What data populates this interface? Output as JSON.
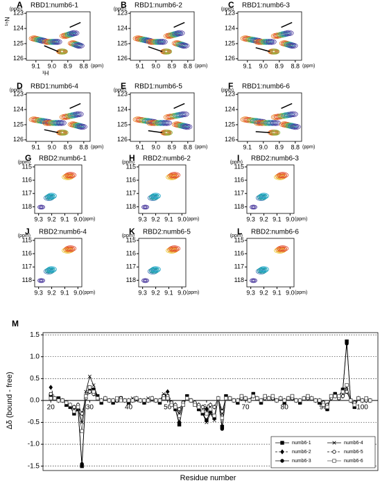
{
  "spectra": [
    {
      "x_label": "¹H",
      "y_label": "¹⁵N",
      "unit": "(ppm)",
      "xlim": [
        9.16,
        8.76
      ],
      "ylim": [
        122.9,
        126.1
      ],
      "xticks": [
        9.1,
        {
          "value": 9,
          "label": "9.0"
        },
        8.9,
        8.8
      ],
      "yticks": [
        123,
        124,
        125,
        126
      ],
      "panels": [
        {
          "letter": "A",
          "title": "RBD1:numb6-1"
        },
        {
          "letter": "B",
          "title": "RBD1:numb6-2"
        },
        {
          "letter": "C",
          "title": "RBD1:numb6-3"
        },
        {
          "letter": "D",
          "title": "RBD1:numb6-4"
        },
        {
          "letter": "E",
          "title": "RBD1:numb6-5"
        },
        {
          "letter": "F",
          "title": "RBD1:numb6-6"
        }
      ]
    },
    {
      "unit": "(ppm)",
      "xlim": [
        9.33,
        8.97
      ],
      "ylim": [
        114.85,
        118.5
      ],
      "xticks": [
        9.3,
        9.2,
        9.1,
        {
          "value": 9,
          "label": "9.0"
        }
      ],
      "yticks": [
        115,
        116,
        117,
        118
      ],
      "panels": [
        {
          "letter": "G",
          "title": "RBD2:numb6-1"
        },
        {
          "letter": "H",
          "title": "RBD2:numb6-2"
        },
        {
          "letter": "I",
          "title": "RBD2:numb6-3"
        },
        {
          "letter": "J",
          "title": "RBD2:numb6-4"
        },
        {
          "letter": "K",
          "title": "RBD2:numb6-5"
        },
        {
          "letter": "L",
          "title": "RBD2:numb6-6"
        }
      ]
    }
  ],
  "chart_data": {
    "type": "line",
    "panel_label": "M",
    "x_label": "Residue number",
    "y_label": "Δδ (bound - free)",
    "xlim": [
      18,
      104
    ],
    "ylim": [
      -1.6,
      1.55
    ],
    "xticks": [
      20,
      30,
      40,
      50,
      60,
      70,
      80,
      90,
      100
    ],
    "yticks": [
      -1.5,
      {
        "value": -1,
        "label": "-1.0"
      },
      -0.5,
      {
        "value": 0,
        "label": "0.0"
      },
      0.5,
      {
        "value": 1,
        "label": "1.0"
      },
      1.5
    ],
    "grid": true,
    "legend": "lower right",
    "x": [
      20,
      21,
      22,
      23,
      24,
      25,
      26,
      27,
      28,
      29,
      30,
      31,
      32,
      33,
      34,
      35,
      36,
      37,
      38,
      39,
      40,
      41,
      42,
      43,
      44,
      45,
      46,
      47,
      48,
      49,
      50,
      51,
      52,
      53,
      54,
      55,
      56,
      57,
      58,
      59,
      60,
      61,
      62,
      63,
      64,
      65,
      66,
      67,
      68,
      69,
      70,
      71,
      72,
      73,
      74,
      75,
      76,
      77,
      78,
      79,
      80,
      81,
      82,
      83,
      84,
      85,
      86,
      87,
      88,
      89,
      90,
      91,
      92,
      93,
      94,
      95,
      96,
      97,
      98,
      99,
      100,
      101,
      102
    ],
    "series": [
      {
        "name": "numb6-1",
        "color": "#000000",
        "marker": "square-filled",
        "dash": false,
        "values": [
          0.1,
          0.05,
          0.05,
          0.0,
          -0.1,
          -0.15,
          -0.3,
          -0.2,
          -1.5,
          0.1,
          0.3,
          0.25,
          0.1,
          -0.05,
          0.05,
          0.0,
          -0.05,
          0.0,
          0.05,
          0.0,
          -0.05,
          0.0,
          0.05,
          0.0,
          -0.05,
          0.0,
          0.05,
          0.0,
          -0.05,
          0.1,
          0.05,
          -0.1,
          -0.2,
          -0.55,
          -0.1,
          0.1,
          0.0,
          -0.1,
          -0.2,
          -0.3,
          -0.45,
          -0.25,
          -0.4,
          0.05,
          -0.6,
          0.1,
          0.05,
          0.0,
          -0.05,
          0.1,
          0.05,
          0.0,
          0.15,
          0.05,
          -0.05,
          0.1,
          0.05,
          0.1,
          0.0,
          0.05,
          -0.05,
          0.05,
          0.1,
          0.0,
          -0.05,
          0.05,
          0.1,
          0.05,
          0.0,
          -0.05,
          -0.1,
          -0.2,
          0.1,
          0.15,
          0.1,
          0.25,
          1.35,
          0.0,
          -0.15,
          0.05,
          0.0,
          0.05,
          0.0
        ]
      },
      {
        "name": "numb6-2",
        "color": "#000000",
        "marker": "diamond-filled",
        "dash": true,
        "values": [
          0.3,
          0.05,
          0.0,
          0.0,
          -0.05,
          -0.1,
          -0.15,
          -0.1,
          -0.3,
          0.05,
          0.2,
          0.15,
          0.05,
          0.0,
          0.05,
          0.0,
          0.0,
          0.0,
          0.05,
          0.0,
          0.0,
          0.0,
          0.05,
          0.0,
          0.0,
          0.0,
          0.05,
          0.0,
          0.0,
          0.1,
          0.2,
          -0.05,
          -0.1,
          -0.2,
          -0.05,
          0.05,
          0.0,
          -0.05,
          -0.1,
          -0.15,
          -0.2,
          -0.1,
          -0.15,
          0.05,
          -0.25,
          0.05,
          0.05,
          0.0,
          0.0,
          0.05,
          0.05,
          0.0,
          0.1,
          0.05,
          0.0,
          0.05,
          0.05,
          0.05,
          0.0,
          0.05,
          0.0,
          0.05,
          0.05,
          0.0,
          0.0,
          0.05,
          0.05,
          0.05,
          0.0,
          0.0,
          -0.05,
          -0.1,
          0.05,
          0.1,
          0.05,
          0.1,
          0.2,
          0.0,
          -0.05,
          0.05,
          0.0,
          0.0,
          0.0
        ]
      },
      {
        "name": "numb6-3",
        "color": "#000000",
        "marker": "circle-filled",
        "dash": false,
        "values": [
          0.1,
          0.05,
          0.05,
          0.0,
          -0.1,
          -0.15,
          -0.3,
          -0.2,
          -1.45,
          0.1,
          0.25,
          0.25,
          0.1,
          -0.05,
          0.05,
          0.0,
          -0.05,
          0.0,
          0.05,
          0.0,
          -0.05,
          0.0,
          0.05,
          0.0,
          -0.05,
          0.0,
          0.05,
          0.0,
          -0.05,
          0.1,
          0.05,
          -0.1,
          -0.2,
          -0.5,
          -0.1,
          0.1,
          0.0,
          -0.1,
          -0.2,
          -0.3,
          -0.45,
          -0.25,
          -0.4,
          0.05,
          -0.65,
          0.1,
          0.05,
          0.0,
          -0.05,
          0.1,
          0.05,
          0.0,
          0.15,
          0.05,
          -0.05,
          0.1,
          0.05,
          0.1,
          0.0,
          0.05,
          -0.05,
          0.05,
          0.1,
          0.0,
          -0.05,
          0.05,
          0.1,
          0.05,
          0.0,
          -0.05,
          -0.1,
          -0.2,
          0.1,
          0.15,
          0.1,
          0.25,
          1.3,
          0.0,
          -0.15,
          0.05,
          0.0,
          0.05,
          0.0
        ]
      },
      {
        "name": "numb6-4",
        "color": "#000000",
        "marker": "cross",
        "dash": false,
        "values": [
          0.15,
          0.05,
          0.0,
          0.0,
          -0.05,
          -0.1,
          -0.2,
          -0.15,
          -0.5,
          0.2,
          0.55,
          0.35,
          0.1,
          0.0,
          0.05,
          0.0,
          0.0,
          0.05,
          0.0,
          0.0,
          0.0,
          0.05,
          0.0,
          0.0,
          0.0,
          0.05,
          0.0,
          0.0,
          0.0,
          0.15,
          0.1,
          -0.05,
          -0.15,
          -0.3,
          -0.05,
          0.05,
          0.0,
          -0.1,
          -0.2,
          -0.3,
          -0.5,
          -0.3,
          -0.45,
          0.05,
          -0.3,
          0.1,
          0.05,
          0.0,
          0.0,
          0.1,
          0.05,
          0.0,
          0.1,
          0.05,
          0.0,
          0.1,
          0.05,
          0.05,
          0.0,
          0.05,
          0.0,
          0.05,
          0.05,
          0.0,
          0.0,
          0.05,
          0.05,
          0.05,
          0.0,
          0.0,
          -0.05,
          -0.15,
          0.1,
          0.1,
          0.05,
          0.15,
          0.3,
          0.0,
          -0.1,
          0.05,
          0.0,
          0.0,
          0.0
        ]
      },
      {
        "name": "numb6-5",
        "color": "#000000",
        "marker": "circle-open",
        "dash": true,
        "values": [
          0.15,
          0.05,
          0.0,
          0.0,
          -0.05,
          -0.1,
          -0.15,
          -0.1,
          -0.3,
          0.05,
          0.2,
          0.15,
          0.05,
          0.0,
          0.05,
          0.0,
          0.0,
          0.0,
          0.05,
          0.0,
          0.0,
          0.0,
          0.05,
          0.0,
          0.0,
          0.0,
          0.05,
          0.0,
          0.0,
          0.1,
          0.1,
          -0.05,
          -0.1,
          -0.2,
          -0.05,
          0.05,
          0.0,
          -0.05,
          -0.1,
          -0.15,
          -0.3,
          -0.1,
          -0.15,
          0.05,
          -0.25,
          0.05,
          0.05,
          0.0,
          0.0,
          0.05,
          0.05,
          0.0,
          0.1,
          0.05,
          0.0,
          0.05,
          0.05,
          0.05,
          0.0,
          0.05,
          0.0,
          0.05,
          0.05,
          0.0,
          0.0,
          0.05,
          0.05,
          0.05,
          0.0,
          0.0,
          -0.05,
          -0.1,
          0.05,
          0.1,
          0.05,
          0.1,
          0.2,
          0.0,
          -0.05,
          0.05,
          0.0,
          0.0,
          0.0
        ]
      },
      {
        "name": "numb6-6",
        "color": "#555555",
        "marker": "square-open",
        "dash": false,
        "values": [
          0.05,
          0.05,
          0.0,
          0.0,
          -0.05,
          -0.1,
          -0.25,
          -0.15,
          -0.7,
          0.1,
          0.3,
          0.2,
          0.05,
          0.0,
          0.05,
          0.0,
          0.0,
          0.05,
          0.0,
          0.0,
          0.0,
          0.0,
          0.05,
          0.0,
          0.0,
          0.0,
          0.05,
          0.0,
          0.0,
          0.05,
          0.05,
          -0.1,
          -0.15,
          -0.35,
          -0.1,
          0.05,
          0.0,
          -0.1,
          -0.15,
          -0.25,
          -0.3,
          -0.2,
          -0.35,
          0.05,
          -0.4,
          0.05,
          0.05,
          0.0,
          0.0,
          0.1,
          0.05,
          0.0,
          0.1,
          0.05,
          0.0,
          0.1,
          0.05,
          0.1,
          0.0,
          0.05,
          0.0,
          0.05,
          0.1,
          0.0,
          0.0,
          0.05,
          0.1,
          0.05,
          0.0,
          0.0,
          -0.1,
          -0.15,
          0.1,
          0.1,
          0.1,
          0.2,
          0.35,
          0.0,
          -0.1,
          0.05,
          0.0,
          0.05,
          0.0
        ]
      }
    ]
  }
}
